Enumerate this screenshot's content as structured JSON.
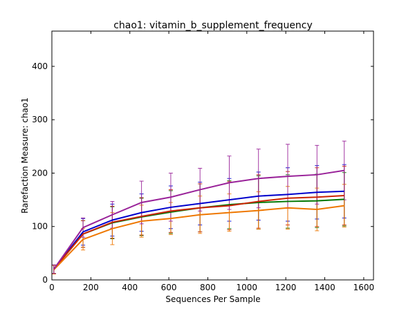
{
  "chart_data": {
    "type": "line",
    "title": "chao1: vitamin_b_supplement_frequency",
    "xlabel": "Sequences Per Sample",
    "ylabel": "Rarefaction Measure: chao1",
    "xlim": [
      0,
      1650
    ],
    "ylim": [
      0,
      466
    ],
    "xticks": [
      0,
      200,
      400,
      600,
      800,
      1000,
      1200,
      1400,
      1600
    ],
    "yticks": [
      0,
      100,
      200,
      300,
      400
    ],
    "grid": false,
    "legend": "none",
    "x": [
      10,
      160,
      310,
      460,
      610,
      760,
      910,
      1060,
      1210,
      1360,
      1500
    ],
    "series": [
      {
        "color": "#0000cc",
        "values": [
          20,
          90,
          112,
          126,
          136,
          143,
          150,
          157,
          160,
          164,
          166
        ],
        "err": [
          8,
          25,
          30,
          35,
          40,
          40,
          40,
          45,
          50,
          50,
          50
        ]
      },
      {
        "color": "#007700",
        "values": [
          20,
          86,
          107,
          118,
          127,
          135,
          141,
          145,
          147,
          148,
          151
        ],
        "err": [
          8,
          25,
          30,
          35,
          40,
          45,
          45,
          50,
          50,
          50,
          50
        ]
      },
      {
        "color": "#cc2200",
        "values": [
          20,
          86,
          108,
          119,
          129,
          135,
          139,
          147,
          153,
          155,
          158
        ],
        "err": [
          8,
          25,
          30,
          35,
          40,
          45,
          45,
          50,
          50,
          55,
          55
        ]
      },
      {
        "color": "#ee7700",
        "values": [
          19,
          76,
          96,
          110,
          115,
          122,
          126,
          130,
          135,
          132,
          139
        ],
        "err": [
          8,
          20,
          30,
          30,
          30,
          35,
          35,
          35,
          40,
          40,
          40
        ]
      },
      {
        "color": "#992299",
        "values": [
          20,
          98,
          122,
          145,
          155,
          169,
          182,
          190,
          194,
          197,
          205
        ],
        "err": [
          8,
          18,
          25,
          40,
          45,
          40,
          50,
          55,
          60,
          55,
          55
        ]
      }
    ]
  }
}
